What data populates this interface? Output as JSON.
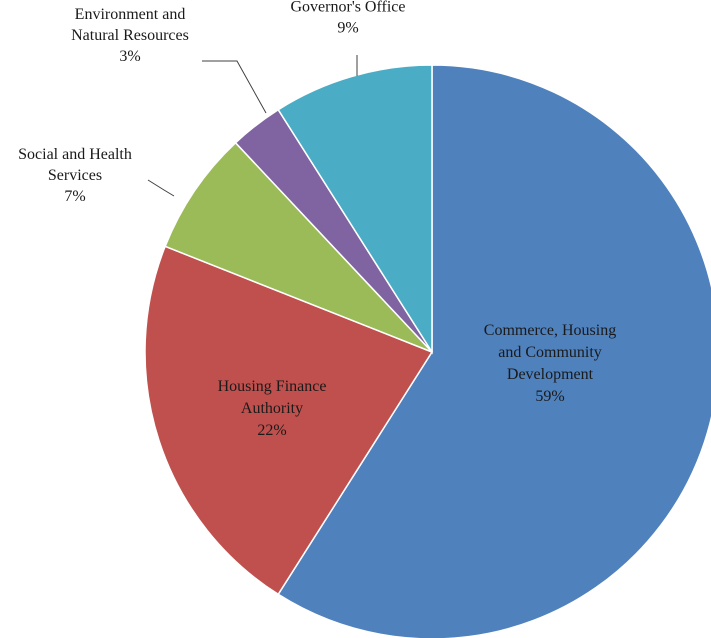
{
  "chart_data": {
    "type": "pie",
    "title": "",
    "start": "top",
    "direction": "clockwise",
    "slices": [
      {
        "name": "Commerce, Housing and Community Development",
        "value": 59,
        "label_lines": [
          "Commerce, Housing",
          "and Community",
          "Development",
          "59%"
        ],
        "color": "#4f81bd",
        "label_position": "inside"
      },
      {
        "name": "Housing Finance Authority",
        "value": 22,
        "label_lines": [
          "Housing Finance",
          "Authority",
          "22%"
        ],
        "color": "#c0504d",
        "label_position": "inside"
      },
      {
        "name": "Social and Health Services",
        "value": 7,
        "label_lines": [
          "Social and Health",
          "Services",
          "7%"
        ],
        "color": "#9bbb59",
        "label_position": "outside"
      },
      {
        "name": "Environment and Natural Resources",
        "value": 3,
        "label_lines": [
          "Environment and",
          "Natural Resources",
          "3%"
        ],
        "color": "#8064a2",
        "label_position": "outside"
      },
      {
        "name": "Governor's Office",
        "value": 9,
        "label_lines": [
          "Governor's Office",
          "9%"
        ],
        "color": "#4bacc6",
        "label_position": "outside"
      }
    ]
  }
}
